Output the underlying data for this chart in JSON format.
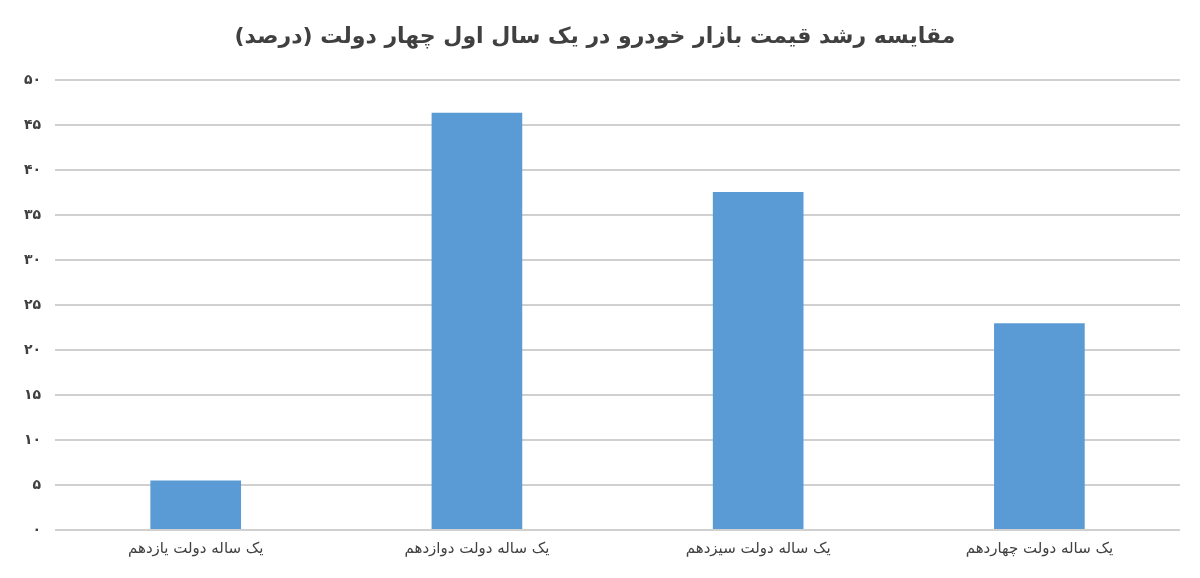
{
  "chart_data": {
    "type": "bar",
    "title": "مقایسه رشد قیمت بازار خودرو در یک سال اول چهار دولت (درصد)",
    "categories": [
      "یک ساله دولت یازدهم",
      "یک ساله دولت دوازدهم",
      "یک ساله دولت سیزدهم",
      "یک ساله دولت چهاردهم"
    ],
    "values": [
      5.5,
      46.4,
      37.6,
      23.0
    ],
    "color": "#5b9bd5",
    "ylim": [
      0,
      50
    ],
    "yticks": [
      {
        "value": 0,
        "label": "۰"
      },
      {
        "value": 5,
        "label": "۵"
      },
      {
        "value": 10,
        "label": "۱۰"
      },
      {
        "value": 15,
        "label": "۱۵"
      },
      {
        "value": 20,
        "label": "۲۰"
      },
      {
        "value": 25,
        "label": "۲۵"
      },
      {
        "value": 30,
        "label": "۳۰"
      },
      {
        "value": 35,
        "label": "۳۵"
      },
      {
        "value": 40,
        "label": "۴۰"
      },
      {
        "value": 45,
        "label": "۴۵"
      },
      {
        "value": 50,
        "label": "۵۰"
      }
    ],
    "grid": "y"
  }
}
